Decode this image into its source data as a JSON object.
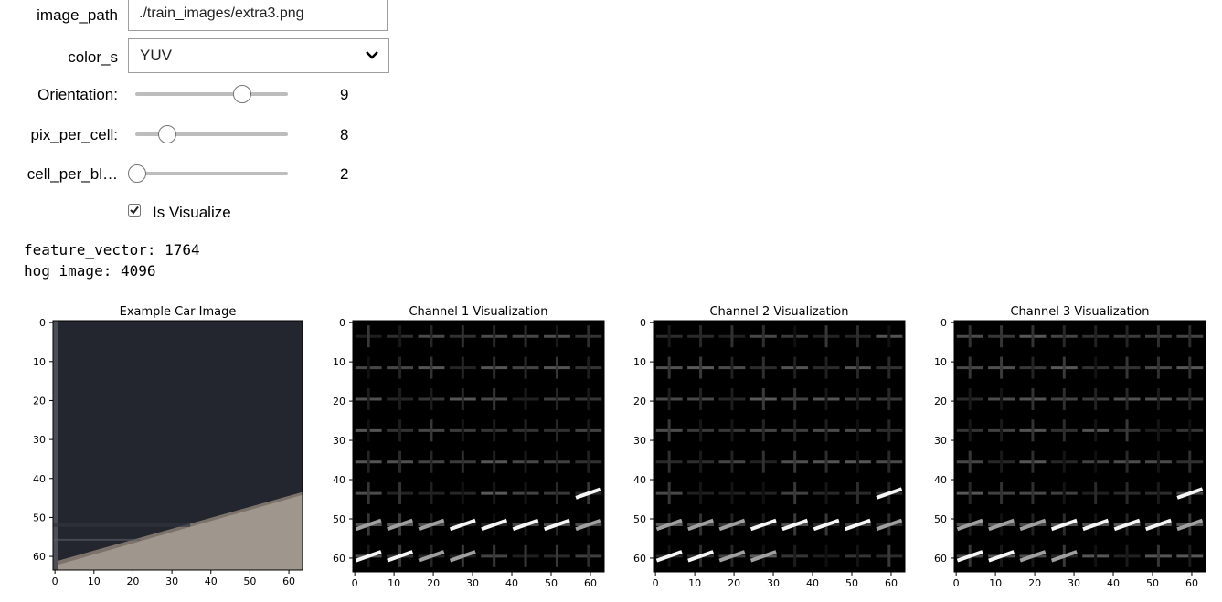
{
  "widgets": {
    "image_path": {
      "label": "image_path",
      "value": "./train_images/extra3.png"
    },
    "color_s": {
      "label": "color_s",
      "value": "YUV"
    },
    "orientation": {
      "label": "Orientation:",
      "value": "9",
      "fraction": 0.7
    },
    "pix_per_cell": {
      "label": "pix_per_cell:",
      "value": "8",
      "fraction": 0.21
    },
    "cell_per_block": {
      "label": "cell_per_bl…",
      "value": "2",
      "fraction": 0.0
    },
    "is_visualize": {
      "label": "Is Visualize",
      "checked": true
    }
  },
  "output": {
    "line1": "feature_vector: 1764",
    "line2": "hog image: 4096"
  },
  "plots": [
    {
      "title": "Example Car Image",
      "kind": "photo"
    },
    {
      "title": "Channel 1 Visualization",
      "kind": "hog"
    },
    {
      "title": "Channel 2 Visualization",
      "kind": "hog"
    },
    {
      "title": "Channel 3 Visualization",
      "kind": "hog"
    }
  ],
  "axis": {
    "xticks": [
      "0",
      "10",
      "20",
      "30",
      "40",
      "50",
      "60"
    ],
    "yticks": [
      "0",
      "10",
      "20",
      "30",
      "40",
      "50",
      "60"
    ],
    "range": [
      0,
      64
    ]
  },
  "colors": {
    "slider_track": "#bdbdbd",
    "hog_bg": "#000000",
    "photo_dark": "#23262f",
    "photo_road": "#9f968d"
  }
}
